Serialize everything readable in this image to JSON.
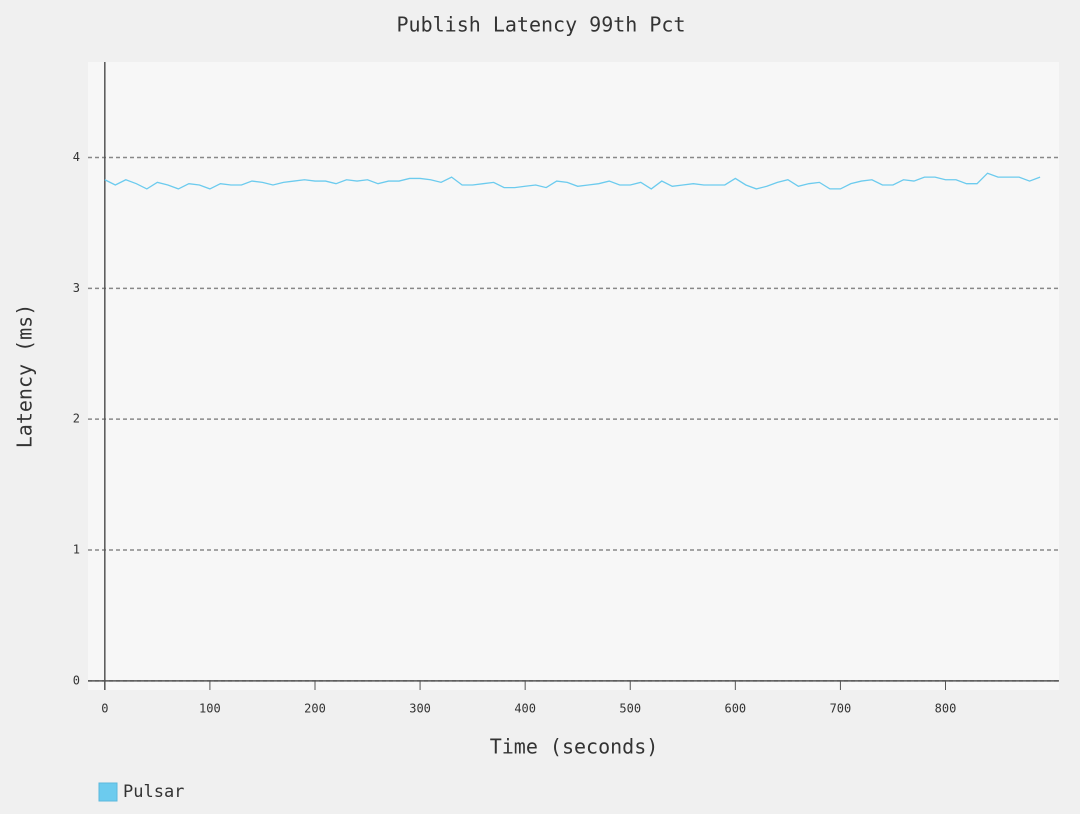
{
  "chart_data": {
    "type": "line",
    "title": "Publish Latency 99th Pct",
    "x_label": "Time (seconds)",
    "y_label": "Latency (ms)",
    "x": [
      0,
      10,
      20,
      30,
      40,
      50,
      60,
      70,
      80,
      90,
      100,
      110,
      120,
      130,
      140,
      150,
      160,
      170,
      180,
      190,
      200,
      210,
      220,
      230,
      240,
      250,
      260,
      270,
      280,
      290,
      300,
      310,
      320,
      330,
      340,
      350,
      360,
      370,
      380,
      390,
      400,
      410,
      420,
      430,
      440,
      450,
      460,
      470,
      480,
      490,
      500,
      510,
      520,
      530,
      540,
      550,
      560,
      570,
      580,
      590,
      600,
      610,
      620,
      630,
      640,
      650,
      660,
      670,
      680,
      690,
      700,
      710,
      720,
      730,
      740,
      750,
      760,
      770,
      780,
      790,
      800,
      810,
      820,
      830,
      840,
      850,
      860,
      870,
      880,
      890
    ],
    "series": [
      {
        "name": "Pulsar",
        "color": "#6ccbee",
        "values": [
          3.83,
          3.79,
          3.83,
          3.8,
          3.76,
          3.81,
          3.79,
          3.76,
          3.8,
          3.79,
          3.76,
          3.8,
          3.79,
          3.79,
          3.82,
          3.81,
          3.79,
          3.81,
          3.82,
          3.83,
          3.82,
          3.82,
          3.8,
          3.83,
          3.82,
          3.83,
          3.8,
          3.82,
          3.82,
          3.84,
          3.84,
          3.83,
          3.81,
          3.85,
          3.79,
          3.79,
          3.8,
          3.81,
          3.77,
          3.77,
          3.78,
          3.79,
          3.77,
          3.82,
          3.81,
          3.78,
          3.79,
          3.8,
          3.82,
          3.79,
          3.79,
          3.81,
          3.76,
          3.82,
          3.78,
          3.79,
          3.8,
          3.79,
          3.79,
          3.79,
          3.84,
          3.79,
          3.76,
          3.78,
          3.81,
          3.83,
          3.78,
          3.8,
          3.81,
          3.76,
          3.76,
          3.8,
          3.82,
          3.83,
          3.79,
          3.79,
          3.83,
          3.82,
          3.85,
          3.85,
          3.83,
          3.83,
          3.8,
          3.8,
          3.88,
          3.85,
          3.85,
          3.85,
          3.82,
          3.85
        ]
      }
    ],
    "xlim": [
      -16,
      908
    ],
    "xticks": [
      0,
      100,
      200,
      300,
      400,
      500,
      600,
      700,
      800
    ],
    "ylim": [
      -0.07,
      4.73
    ],
    "yticks": [
      0,
      1,
      2,
      3,
      4
    ],
    "grid": true
  }
}
